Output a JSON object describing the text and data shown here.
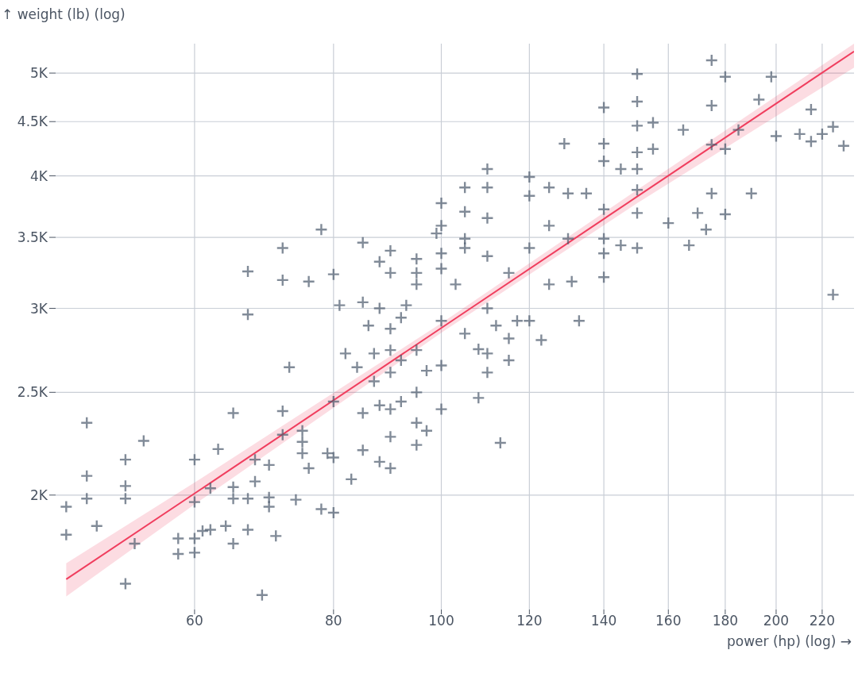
{
  "chart_data": {
    "type": "scatter",
    "xlabel": "power (hp) (log) →",
    "ylabel": "↑ weight (lb) (log)",
    "log": "xy",
    "xlim": [
      45,
      235
    ],
    "ylim": [
      1560,
      5330
    ],
    "xticks": [
      60,
      80,
      100,
      120,
      140,
      160,
      180,
      200,
      220
    ],
    "yticks": [
      {
        "value": 2000,
        "label": "2K"
      },
      {
        "value": 2500,
        "label": "2.5K"
      },
      {
        "value": 3000,
        "label": "3K"
      },
      {
        "value": 3500,
        "label": "3.5K"
      },
      {
        "value": 4000,
        "label": "4K"
      },
      {
        "value": 4500,
        "label": "4.5K"
      },
      {
        "value": 5000,
        "label": "5K"
      }
    ],
    "grid": true,
    "series": [
      {
        "marker": "cross",
        "color": "#4b5a6c",
        "x": [
          46,
          46,
          48,
          48,
          48,
          49,
          52,
          52,
          52,
          53,
          54,
          52,
          58,
          58,
          60,
          60,
          60,
          60,
          61,
          62,
          63,
          62,
          65,
          65,
          65,
          64,
          65,
          67,
          67,
          67,
          67,
          68,
          68,
          69,
          70,
          70,
          70,
          71,
          72,
          72,
          72,
          72,
          73,
          74,
          75,
          75,
          75,
          76,
          76,
          78,
          78,
          79,
          80,
          80,
          80,
          80,
          81,
          82,
          83,
          84,
          85,
          85,
          85,
          85,
          86,
          87,
          87,
          88,
          88,
          88,
          88,
          90,
          90,
          90,
          90,
          90,
          90,
          90,
          90,
          92,
          92,
          92,
          93,
          95,
          95,
          95,
          95,
          95,
          95,
          95,
          97,
          97,
          99,
          100,
          100,
          100,
          100,
          100,
          100,
          100,
          103,
          105,
          105,
          105,
          105,
          105,
          108,
          108,
          110,
          110,
          110,
          110,
          110,
          110,
          110,
          112,
          113,
          115,
          115,
          115,
          117,
          120,
          120,
          120,
          120,
          123,
          125,
          125,
          125,
          129,
          130,
          130,
          131,
          133,
          135,
          140,
          140,
          140,
          140,
          140,
          140,
          140,
          145,
          145,
          150,
          150,
          150,
          150,
          150,
          150,
          150,
          150,
          155,
          155,
          160,
          165,
          167,
          170,
          173,
          175,
          175,
          175,
          175,
          180,
          180,
          180,
          185,
          190,
          193,
          198,
          200,
          210,
          215,
          215,
          220,
          225,
          225,
          230
        ],
        "values": [
          1950,
          1835,
          2340,
          2085,
          1985,
          1870,
          2160,
          2040,
          1985,
          1800,
          2250,
          1650,
          1820,
          1760,
          2160,
          1970,
          1820,
          1765,
          1850,
          2030,
          2210,
          1855,
          2390,
          2035,
          1985,
          1870,
          1800,
          3250,
          2960,
          1985,
          1855,
          2160,
          2060,
          1610,
          2135,
          1990,
          1950,
          1830,
          3420,
          3190,
          2400,
          2280,
          2640,
          1980,
          2300,
          2245,
          2190,
          3180,
          2120,
          3560,
          1940,
          2190,
          3230,
          2450,
          1925,
          2170,
          3020,
          2720,
          2070,
          2640,
          3460,
          3040,
          2390,
          2205,
          2890,
          2720,
          2560,
          3320,
          3000,
          2430,
          2150,
          3400,
          3240,
          2870,
          2740,
          2610,
          2410,
          2270,
          2120,
          2940,
          2680,
          2450,
          3020,
          3340,
          3240,
          3160,
          2740,
          2500,
          2340,
          2230,
          2300,
          2620,
          3530,
          3770,
          3590,
          3380,
          3270,
          2920,
          2650,
          2410,
          3160,
          3900,
          3700,
          3490,
          3420,
          2840,
          2745,
          2470,
          4060,
          3900,
          3650,
          3360,
          3000,
          2720,
          2610,
          2890,
          2240,
          3240,
          2810,
          2680,
          2920,
          3990,
          3830,
          3420,
          2920,
          2800,
          3900,
          3590,
          3160,
          4290,
          3850,
          3490,
          3180,
          2920,
          3850,
          4640,
          4290,
          4130,
          3720,
          3490,
          3380,
          3210,
          4060,
          3440,
          4990,
          4700,
          4460,
          4210,
          4060,
          3880,
          3690,
          3420,
          4490,
          4240,
          3610,
          4420,
          3440,
          3690,
          3560,
          5140,
          4660,
          4280,
          3850,
          4960,
          4240,
          3680,
          4420,
          3850,
          4720,
          4960,
          4360,
          4380,
          4620,
          4310,
          4380,
          4450,
          3090,
          4270
        ]
      },
      {
        "type": "line",
        "color": "#f03e5e",
        "x": [
          46,
          60,
          100,
          150,
          235
        ],
        "values": [
          1666,
          2007,
          2875,
          3824,
          5241
        ],
        "lower": [
          1605,
          1960,
          2845,
          3770,
          5060
        ],
        "upper": [
          1725,
          2055,
          2905,
          3880,
          5330
        ]
      }
    ]
  }
}
